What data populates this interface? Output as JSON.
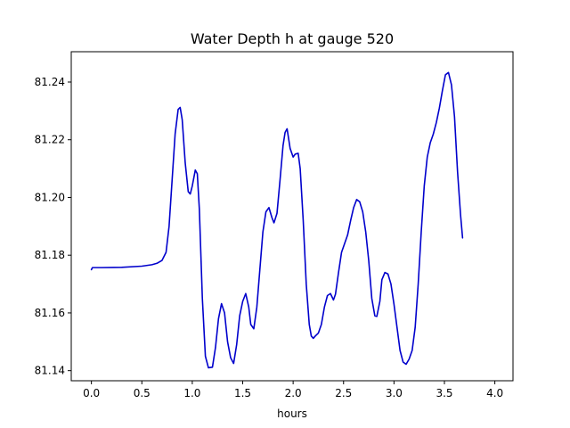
{
  "chart_data": {
    "type": "line",
    "title": "Water Depth h at gauge 520",
    "xlabel": "hours",
    "ylabel": "",
    "xlim": [
      -0.2,
      4.18
    ],
    "ylim": [
      81.1365,
      81.2505
    ],
    "grid": false,
    "x_ticks": [
      0.0,
      0.5,
      1.0,
      1.5,
      2.0,
      2.5,
      3.0,
      3.5,
      4.0
    ],
    "x_tick_labels": [
      "0.0",
      "0.5",
      "1.0",
      "1.5",
      "2.0",
      "2.5",
      "3.0",
      "3.5",
      "4.0"
    ],
    "y_ticks": [
      81.14,
      81.16,
      81.18,
      81.2,
      81.22,
      81.24
    ],
    "y_tick_labels": [
      "81.14",
      "81.16",
      "81.18",
      "81.20",
      "81.22",
      "81.24"
    ],
    "colors": {
      "line": "#0000cc"
    },
    "series": [
      {
        "points": [
          [
            0.0,
            81.175
          ],
          [
            0.01,
            81.1757
          ],
          [
            0.1,
            81.1757
          ],
          [
            0.3,
            81.1758
          ],
          [
            0.5,
            81.1762
          ],
          [
            0.6,
            81.1767
          ],
          [
            0.65,
            81.1772
          ],
          [
            0.7,
            81.1782
          ],
          [
            0.74,
            81.181
          ],
          [
            0.77,
            81.19
          ],
          [
            0.8,
            81.206
          ],
          [
            0.83,
            81.222
          ],
          [
            0.86,
            81.2305
          ],
          [
            0.88,
            81.2312
          ],
          [
            0.9,
            81.227
          ],
          [
            0.93,
            81.212
          ],
          [
            0.96,
            81.202
          ],
          [
            0.98,
            81.2012
          ],
          [
            1.0,
            81.204
          ],
          [
            1.03,
            81.2095
          ],
          [
            1.05,
            81.2082
          ],
          [
            1.07,
            81.196
          ],
          [
            1.1,
            81.165
          ],
          [
            1.13,
            81.145
          ],
          [
            1.16,
            81.141
          ],
          [
            1.2,
            81.1412
          ],
          [
            1.23,
            81.148
          ],
          [
            1.26,
            81.158
          ],
          [
            1.29,
            81.1632
          ],
          [
            1.32,
            81.16
          ],
          [
            1.35,
            81.15
          ],
          [
            1.38,
            81.1445
          ],
          [
            1.41,
            81.1425
          ],
          [
            1.44,
            81.149
          ],
          [
            1.47,
            81.159
          ],
          [
            1.5,
            81.164
          ],
          [
            1.53,
            81.1667
          ],
          [
            1.56,
            81.162
          ],
          [
            1.58,
            81.156
          ],
          [
            1.61,
            81.1545
          ],
          [
            1.64,
            81.162
          ],
          [
            1.67,
            81.175
          ],
          [
            1.7,
            81.188
          ],
          [
            1.73,
            81.195
          ],
          [
            1.76,
            81.1965
          ],
          [
            1.79,
            81.193
          ],
          [
            1.81,
            81.1912
          ],
          [
            1.84,
            81.1945
          ],
          [
            1.87,
            81.206
          ],
          [
            1.9,
            81.218
          ],
          [
            1.92,
            81.2225
          ],
          [
            1.94,
            81.2238
          ],
          [
            1.97,
            81.217
          ],
          [
            2.0,
            81.214
          ],
          [
            2.02,
            81.215
          ],
          [
            2.05,
            81.2153
          ],
          [
            2.07,
            81.21
          ],
          [
            2.1,
            81.192
          ],
          [
            2.13,
            81.17
          ],
          [
            2.16,
            81.156
          ],
          [
            2.18,
            81.152
          ],
          [
            2.2,
            81.1512
          ],
          [
            2.22,
            81.152
          ],
          [
            2.25,
            81.153
          ],
          [
            2.28,
            81.156
          ],
          [
            2.31,
            81.162
          ],
          [
            2.34,
            81.166
          ],
          [
            2.37,
            81.1667
          ],
          [
            2.4,
            81.1645
          ],
          [
            2.42,
            81.1665
          ],
          [
            2.45,
            81.174
          ],
          [
            2.48,
            81.181
          ],
          [
            2.51,
            81.184
          ],
          [
            2.54,
            81.187
          ],
          [
            2.57,
            81.192
          ],
          [
            2.6,
            81.1965
          ],
          [
            2.63,
            81.1993
          ],
          [
            2.66,
            81.1985
          ],
          [
            2.69,
            81.195
          ],
          [
            2.72,
            81.188
          ],
          [
            2.75,
            81.178
          ],
          [
            2.78,
            81.165
          ],
          [
            2.81,
            81.159
          ],
          [
            2.83,
            81.1588
          ],
          [
            2.86,
            81.164
          ],
          [
            2.88,
            81.1715
          ],
          [
            2.91,
            81.174
          ],
          [
            2.94,
            81.1735
          ],
          [
            2.97,
            81.17
          ],
          [
            3.0,
            81.163
          ],
          [
            3.03,
            81.155
          ],
          [
            3.06,
            81.147
          ],
          [
            3.09,
            81.143
          ],
          [
            3.12,
            81.1422
          ],
          [
            3.15,
            81.144
          ],
          [
            3.18,
            81.147
          ],
          [
            3.21,
            81.155
          ],
          [
            3.24,
            81.17
          ],
          [
            3.27,
            81.188
          ],
          [
            3.3,
            81.204
          ],
          [
            3.33,
            81.214
          ],
          [
            3.36,
            81.219
          ],
          [
            3.39,
            81.222
          ],
          [
            3.42,
            81.226
          ],
          [
            3.45,
            81.231
          ],
          [
            3.48,
            81.237
          ],
          [
            3.51,
            81.2425
          ],
          [
            3.54,
            81.2433
          ],
          [
            3.57,
            81.239
          ],
          [
            3.6,
            81.228
          ],
          [
            3.63,
            81.209
          ],
          [
            3.66,
            81.194
          ],
          [
            3.68,
            81.186
          ]
        ]
      }
    ]
  }
}
